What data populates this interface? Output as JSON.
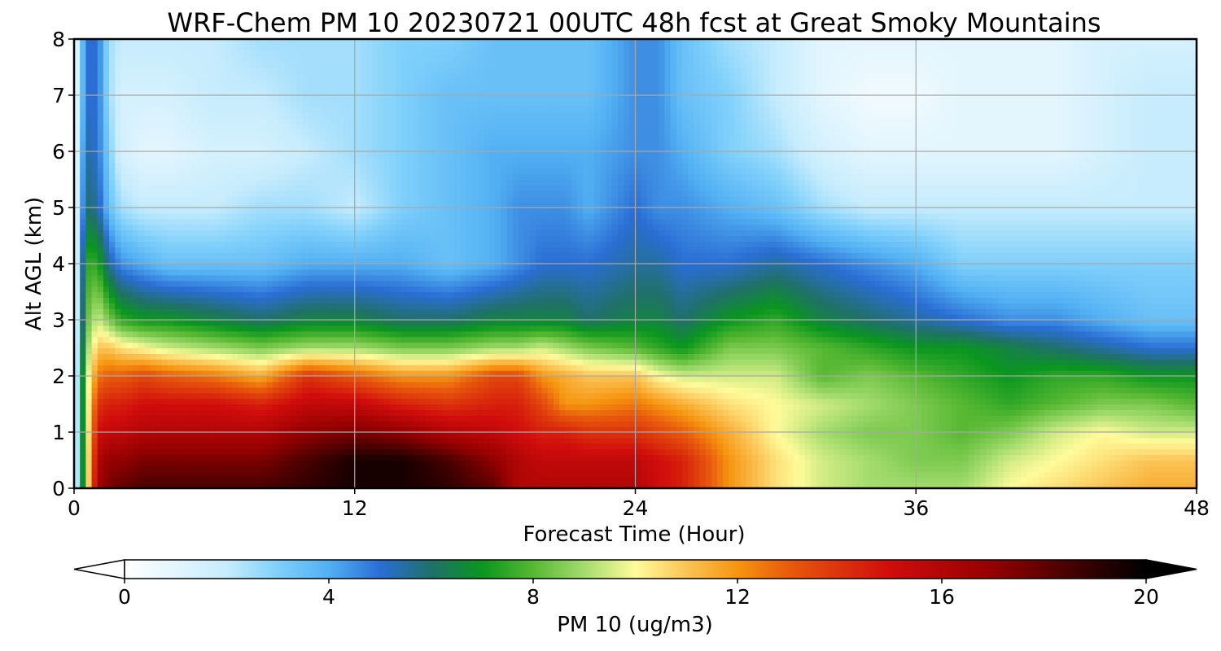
{
  "chart_data": {
    "type": "heatmap",
    "title": "WRF-Chem PM 10  20230721 00UTC 48h fcst at Great Smoky Mountains",
    "xlabel": "Forecast Time (Hour)",
    "ylabel": "Alt AGL (km)",
    "xlim": [
      0,
      48
    ],
    "ylim": [
      0,
      8
    ],
    "x_ticks": [
      "0",
      "12",
      "24",
      "36",
      "48"
    ],
    "y_ticks": [
      "0",
      "1",
      "2",
      "3",
      "4",
      "5",
      "6",
      "7",
      "8"
    ],
    "grid": true,
    "colorbar": {
      "label": "PM 10  (ug/m3)",
      "range": [
        0,
        20
      ],
      "ticks": [
        "0",
        "4",
        "8",
        "12",
        "16",
        "20"
      ],
      "extend": "both",
      "stops": [
        {
          "v": 0,
          "c": "#ffffff"
        },
        {
          "v": 2,
          "c": "#c6ecfd"
        },
        {
          "v": 3,
          "c": "#7fd0fb"
        },
        {
          "v": 4,
          "c": "#52b0f3"
        },
        {
          "v": 5,
          "c": "#2a6ed4"
        },
        {
          "v": 6,
          "c": "#20706a"
        },
        {
          "v": 7,
          "c": "#0a961e"
        },
        {
          "v": 8,
          "c": "#57b833"
        },
        {
          "v": 9,
          "c": "#a4dc6e"
        },
        {
          "v": 10,
          "c": "#fffb9b"
        },
        {
          "v": 11,
          "c": "#fbc456"
        },
        {
          "v": 12,
          "c": "#f69510"
        },
        {
          "v": 13,
          "c": "#e85a0c"
        },
        {
          "v": 15,
          "c": "#d00c0c"
        },
        {
          "v": 17,
          "c": "#930000"
        },
        {
          "v": 19,
          "c": "#2e0000"
        },
        {
          "v": 20,
          "c": "#000000"
        }
      ]
    },
    "time_hours": [
      0,
      0.5,
      1,
      1.5,
      2,
      3,
      4,
      6,
      8,
      10,
      12,
      14,
      16,
      18,
      19,
      20,
      21,
      22,
      24,
      25,
      26,
      28,
      30,
      32,
      34,
      36,
      38,
      40,
      42,
      44,
      46,
      48
    ],
    "altitude_km": [
      0,
      0.5,
      1,
      1.5,
      2,
      2.5,
      3,
      4,
      5,
      6,
      7,
      8
    ],
    "values_ugm3": [
      [
        0,
        9.0,
        16.5,
        17.5,
        18.0,
        18.5,
        18.5,
        18.5,
        18.5,
        19.0,
        19.5,
        19.5,
        19.0,
        18.0,
        16.0,
        16.0,
        16.0,
        16.0,
        16.0,
        15.0,
        14.5,
        12.0,
        10.5,
        9.5,
        9.0,
        9.0,
        9.0,
        10.0,
        10.5,
        11.0,
        11.5,
        11.5
      ],
      [
        0,
        9.0,
        16.0,
        17.0,
        17.0,
        17.5,
        17.5,
        17.5,
        17.5,
        18.5,
        19.5,
        19.5,
        18.5,
        17.0,
        16.0,
        15.5,
        15.5,
        15.5,
        15.5,
        15.0,
        14.5,
        12.0,
        10.5,
        9.5,
        9.0,
        8.5,
        8.5,
        9.5,
        10.0,
        10.5,
        11.0,
        11.0
      ],
      [
        0,
        9.0,
        15.0,
        15.5,
        15.5,
        16.0,
        16.0,
        16.0,
        16.0,
        17.0,
        17.5,
        17.0,
        16.0,
        15.5,
        15.0,
        14.5,
        14.5,
        14.0,
        14.0,
        13.5,
        13.0,
        11.5,
        10.0,
        9.0,
        8.5,
        8.5,
        8.0,
        8.5,
        9.5,
        10.0,
        9.5,
        9.5
      ],
      [
        0,
        9.0,
        14.0,
        14.5,
        14.5,
        15.0,
        15.0,
        15.0,
        14.5,
        15.5,
        15.5,
        14.5,
        14.0,
        14.5,
        14.5,
        13.5,
        12.0,
        12.0,
        12.5,
        12.0,
        11.5,
        10.5,
        10.0,
        9.5,
        9.0,
        8.5,
        8.0,
        7.5,
        8.0,
        8.5,
        8.5,
        8.0
      ],
      [
        0,
        9.0,
        12.5,
        13.0,
        13.0,
        13.5,
        13.0,
        12.5,
        11.5,
        14.0,
        13.0,
        12.0,
        12.0,
        13.5,
        13.5,
        12.0,
        11.5,
        11.0,
        11.0,
        10.0,
        9.5,
        9.5,
        9.5,
        8.0,
        8.5,
        8.0,
        7.5,
        7.0,
        7.5,
        7.5,
        7.0,
        7.0
      ],
      [
        0,
        8.5,
        11.0,
        11.0,
        10.5,
        10.0,
        9.5,
        9.0,
        8.5,
        9.0,
        9.0,
        8.5,
        8.5,
        9.0,
        9.0,
        9.5,
        9.0,
        8.5,
        8.0,
        7.5,
        7.0,
        8.5,
        8.5,
        8.0,
        7.5,
        7.0,
        7.0,
        6.5,
        6.0,
        5.5,
        5.0,
        5.0
      ],
      [
        0,
        8.0,
        9.5,
        8.5,
        7.5,
        7.0,
        7.0,
        6.5,
        6.0,
        6.5,
        6.5,
        6.0,
        6.0,
        6.5,
        6.5,
        6.5,
        6.5,
        6.0,
        6.5,
        6.5,
        6.0,
        7.0,
        7.5,
        6.5,
        6.0,
        5.5,
        5.0,
        4.5,
        4.5,
        4.0,
        3.5,
        3.5
      ],
      [
        0,
        7.5,
        7.5,
        5.5,
        4.5,
        4.0,
        3.5,
        3.5,
        3.5,
        4.0,
        4.0,
        4.0,
        3.5,
        4.0,
        4.5,
        5.0,
        5.0,
        5.0,
        5.5,
        5.5,
        5.0,
        5.0,
        5.5,
        5.0,
        4.5,
        4.0,
        3.0,
        3.0,
        3.0,
        3.0,
        3.0,
        3.0
      ],
      [
        0,
        6.0,
        5.5,
        3.5,
        2.5,
        2.0,
        2.0,
        2.0,
        2.5,
        2.5,
        2.0,
        3.0,
        3.5,
        4.0,
        4.5,
        4.5,
        4.5,
        4.0,
        5.0,
        4.5,
        4.5,
        4.0,
        3.5,
        2.5,
        2.0,
        2.0,
        2.0,
        2.0,
        2.0,
        2.0,
        2.0,
        2.0
      ],
      [
        0,
        5.5,
        5.0,
        3.0,
        1.5,
        1.0,
        1.0,
        1.5,
        1.5,
        2.0,
        2.5,
        3.0,
        3.5,
        4.0,
        4.0,
        4.0,
        4.0,
        4.0,
        4.5,
        4.5,
        4.0,
        3.0,
        2.5,
        1.5,
        1.0,
        1.0,
        1.0,
        1.0,
        1.0,
        1.5,
        2.0,
        2.0
      ],
      [
        0,
        5.0,
        5.0,
        2.5,
        1.5,
        1.5,
        1.5,
        2.0,
        2.0,
        2.5,
        2.5,
        3.0,
        3.5,
        3.5,
        3.5,
        3.5,
        3.5,
        3.5,
        4.5,
        4.5,
        3.5,
        3.0,
        2.0,
        1.0,
        0.5,
        0.5,
        1.0,
        1.0,
        1.0,
        1.5,
        2.0,
        2.0
      ],
      [
        0,
        5.0,
        5.0,
        2.5,
        2.0,
        2.0,
        2.0,
        2.0,
        2.5,
        2.5,
        2.5,
        3.0,
        3.0,
        3.5,
        3.5,
        3.5,
        3.5,
        3.5,
        4.5,
        4.5,
        3.5,
        2.5,
        2.0,
        1.0,
        1.0,
        1.0,
        1.0,
        1.0,
        1.0,
        1.5,
        1.5,
        1.5
      ]
    ]
  }
}
